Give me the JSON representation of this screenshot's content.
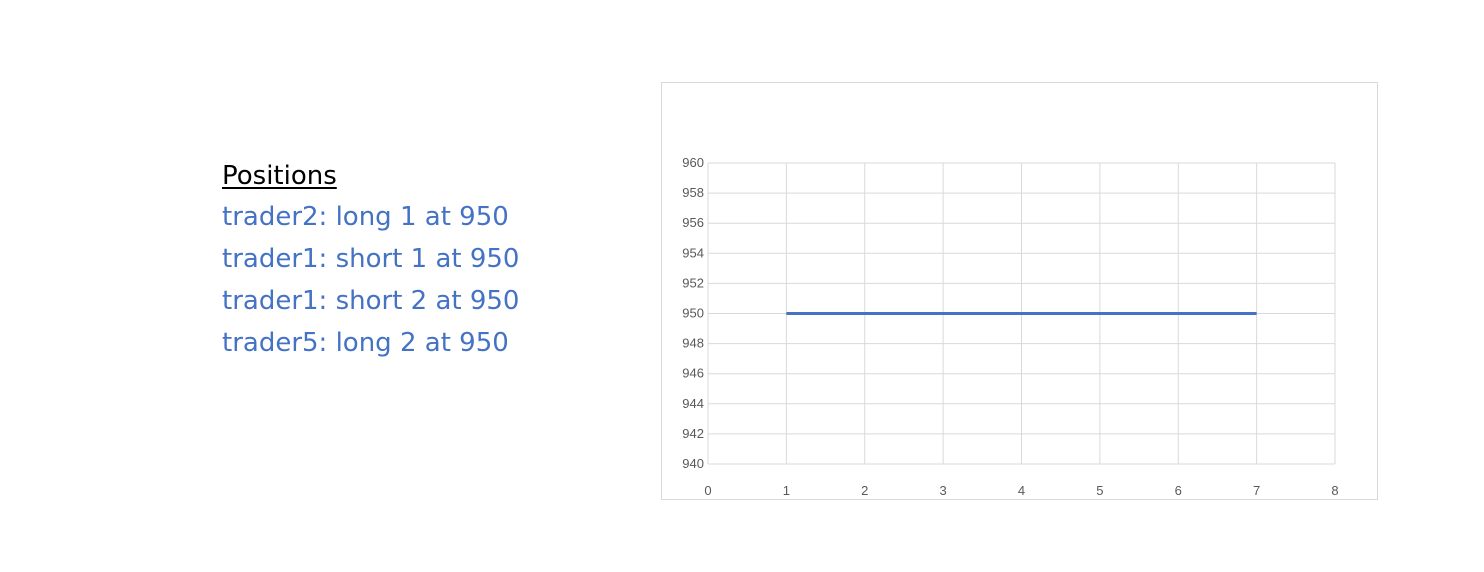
{
  "positions": {
    "title": "Positions",
    "lines": [
      "trader2: long 1 at 950",
      "trader1: short 1 at 950",
      "trader1: short 2 at 950",
      "trader5: long 2 at 950"
    ]
  },
  "colors": {
    "position_text": "#4472C4",
    "series_line": "#4472C4",
    "gridline": "#d9d9d9",
    "tick_text": "#595959"
  },
  "chart_data": {
    "type": "line",
    "title": "",
    "xlabel": "",
    "ylabel": "",
    "xlim": [
      0,
      8
    ],
    "ylim": [
      940,
      960
    ],
    "x_ticks": [
      0,
      1,
      2,
      3,
      4,
      5,
      6,
      7,
      8
    ],
    "y_ticks": [
      940,
      942,
      944,
      946,
      948,
      950,
      952,
      954,
      956,
      958,
      960
    ],
    "grid": true,
    "legend": "none",
    "series": [
      {
        "x": [
          1,
          7
        ],
        "values": [
          950,
          950
        ]
      }
    ]
  }
}
